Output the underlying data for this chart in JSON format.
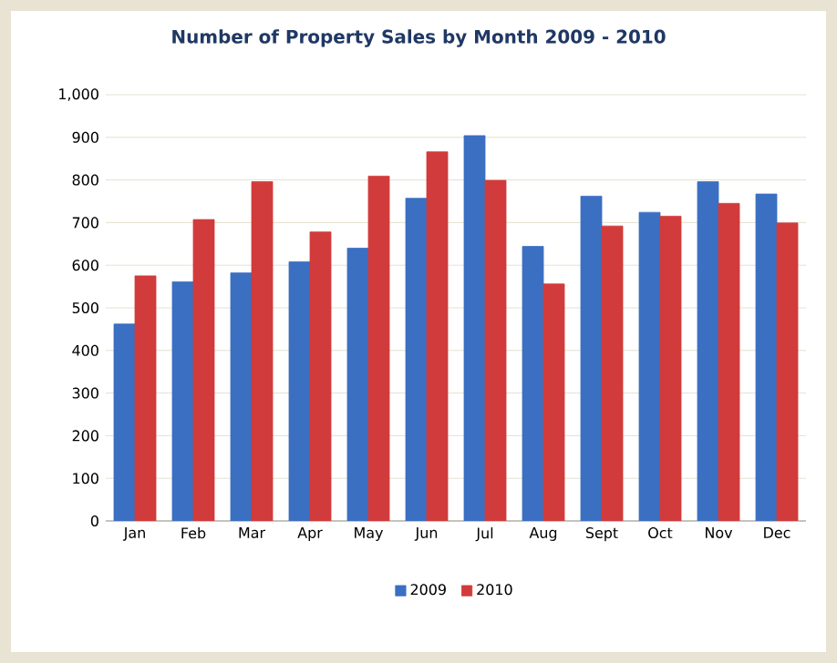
{
  "chart_data": {
    "type": "bar",
    "title": "Number of Property Sales by Month 2009 - 2010",
    "categories": [
      "Jan",
      "Feb",
      "Mar",
      "Apr",
      "May",
      "Jun",
      "Jul",
      "Aug",
      "Sept",
      "Oct",
      "Nov",
      "Dec"
    ],
    "series": [
      {
        "name": "2009",
        "color": "#3b6fc2",
        "values": [
          462,
          561,
          582,
          608,
          640,
          757,
          904,
          644,
          762,
          724,
          796,
          767
        ]
      },
      {
        "name": "2010",
        "color": "#d23b3b",
        "values": [
          575,
          707,
          796,
          678,
          809,
          866,
          799,
          556,
          692,
          715,
          745,
          699
        ]
      }
    ],
    "ylim": [
      0,
      1000
    ],
    "yticks": [
      0,
      100,
      200,
      300,
      400,
      500,
      600,
      700,
      800,
      900,
      {
        "value": 1000,
        "label": "1,000"
      }
    ],
    "grid": "y",
    "legend": "bottom"
  }
}
